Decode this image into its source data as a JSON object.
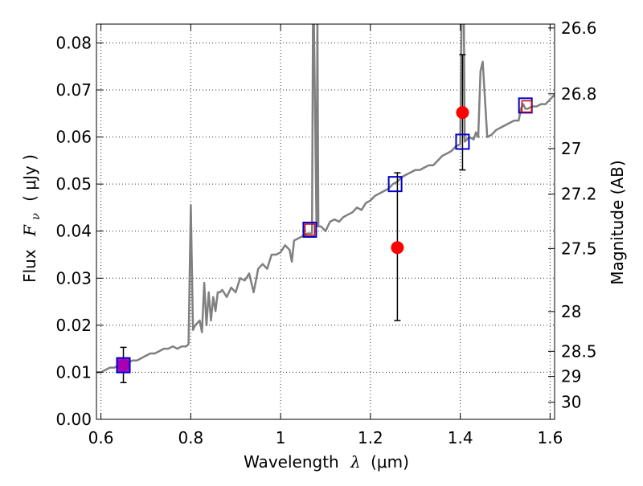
{
  "chart_data": {
    "type": "scatter",
    "xlabel_text": "Wavelength",
    "xlabel_symbol": "λ",
    "xlabel_unit": "(μm)",
    "ylabel_text": "Flux",
    "ylabel_symbol": "F",
    "ylabel_sub": "ν",
    "ylabel_unit": "( μJy )",
    "y2label": "Magnitude (AB)",
    "xlim": [
      0.59,
      1.61
    ],
    "ylim": [
      0.0,
      0.084
    ],
    "grid": true,
    "x_ticks": [
      {
        "v": 0.6,
        "label": "0.6"
      },
      {
        "v": 0.8,
        "label": "0.8"
      },
      {
        "v": 1.0,
        "label": "1"
      },
      {
        "v": 1.2,
        "label": "1.2"
      },
      {
        "v": 1.4,
        "label": "1.4"
      },
      {
        "v": 1.6,
        "label": "1.6"
      }
    ],
    "y_ticks": [
      {
        "v": 0.0,
        "label": "0.00"
      },
      {
        "v": 0.01,
        "label": "0.01"
      },
      {
        "v": 0.02,
        "label": "0.02"
      },
      {
        "v": 0.03,
        "label": "0.03"
      },
      {
        "v": 0.04,
        "label": "0.04"
      },
      {
        "v": 0.05,
        "label": "0.05"
      },
      {
        "v": 0.06,
        "label": "0.06"
      },
      {
        "v": 0.07,
        "label": "0.07"
      },
      {
        "v": 0.08,
        "label": "0.08"
      }
    ],
    "mag_ticks": [
      {
        "mag": 26.6,
        "label": "26.6"
      },
      {
        "mag": 26.8,
        "label": "26.8"
      },
      {
        "mag": 27.0,
        "label": "27"
      },
      {
        "mag": 27.2,
        "label": "27.2"
      },
      {
        "mag": 27.5,
        "label": "27.5"
      },
      {
        "mag": 28.0,
        "label": "28"
      },
      {
        "mag": 28.5,
        "label": "28.5"
      },
      {
        "mag": 29.0,
        "label": "29"
      },
      {
        "mag": 30.0,
        "label": "30"
      }
    ],
    "series": [
      {
        "kind": "line",
        "color": "#808080",
        "x": [
          0.59,
          0.6,
          0.61,
          0.62,
          0.63,
          0.64,
          0.65,
          0.66,
          0.67,
          0.68,
          0.69,
          0.7,
          0.71,
          0.72,
          0.73,
          0.74,
          0.75,
          0.76,
          0.77,
          0.78,
          0.79,
          0.795,
          0.8,
          0.805,
          0.81,
          0.82,
          0.825,
          0.83,
          0.835,
          0.84,
          0.845,
          0.85,
          0.855,
          0.86,
          0.865,
          0.87,
          0.88,
          0.89,
          0.9,
          0.91,
          0.92,
          0.93,
          0.94,
          0.95,
          0.96,
          0.97,
          0.98,
          0.99,
          1.0,
          1.01,
          1.02,
          1.025,
          1.03,
          1.04,
          1.05,
          1.06,
          1.07,
          1.072,
          1.074,
          1.08,
          1.082,
          1.084,
          1.09,
          1.1,
          1.11,
          1.12,
          1.13,
          1.14,
          1.15,
          1.16,
          1.17,
          1.18,
          1.19,
          1.2,
          1.21,
          1.22,
          1.23,
          1.24,
          1.25,
          1.26,
          1.27,
          1.28,
          1.29,
          1.3,
          1.31,
          1.32,
          1.33,
          1.34,
          1.35,
          1.36,
          1.37,
          1.38,
          1.39,
          1.4,
          1.403,
          1.405,
          1.408,
          1.41,
          1.42,
          1.43,
          1.435,
          1.44,
          1.445,
          1.45,
          1.46,
          1.47,
          1.48,
          1.49,
          1.5,
          1.51,
          1.52,
          1.53,
          1.535,
          1.54,
          1.545,
          1.55,
          1.56,
          1.57,
          1.58,
          1.59,
          1.6,
          1.61
        ],
        "y": [
          0.01,
          0.01,
          0.0105,
          0.011,
          0.011,
          0.0115,
          0.0115,
          0.012,
          0.0125,
          0.0125,
          0.013,
          0.0135,
          0.014,
          0.014,
          0.0145,
          0.015,
          0.015,
          0.0155,
          0.015,
          0.0155,
          0.0155,
          0.016,
          0.0455,
          0.019,
          0.02,
          0.021,
          0.0185,
          0.029,
          0.02,
          0.027,
          0.021,
          0.026,
          0.023,
          0.027,
          0.027,
          0.0275,
          0.026,
          0.028,
          0.027,
          0.03,
          0.0295,
          0.031,
          0.027,
          0.032,
          0.033,
          0.032,
          0.035,
          0.035,
          0.0355,
          0.037,
          0.036,
          0.0335,
          0.038,
          0.0385,
          0.039,
          0.0395,
          0.0395,
          0.085,
          0.085,
          0.041,
          0.085,
          0.041,
          0.041,
          0.04,
          0.042,
          0.0425,
          0.042,
          0.043,
          0.0435,
          0.044,
          0.045,
          0.0445,
          0.046,
          0.0465,
          0.0475,
          0.048,
          0.0485,
          0.049,
          0.05,
          0.0505,
          0.0515,
          0.052,
          0.0525,
          0.053,
          0.053,
          0.0535,
          0.054,
          0.054,
          0.055,
          0.056,
          0.0565,
          0.057,
          0.058,
          0.0585,
          0.085,
          0.085,
          0.085,
          0.059,
          0.06,
          0.0595,
          0.061,
          0.06,
          0.074,
          0.076,
          0.06,
          0.0605,
          0.0615,
          0.062,
          0.0625,
          0.063,
          0.0635,
          0.0635,
          0.066,
          0.067,
          0.066,
          0.066,
          0.0665,
          0.0665,
          0.067,
          0.067,
          0.068,
          0.069
        ]
      },
      {
        "kind": "markers",
        "marker": "circle",
        "color": "#ff0000",
        "x": [
          0.65,
          1.26,
          1.405
        ],
        "y": [
          0.0115,
          0.0365,
          0.0652
        ],
        "y_err_low": [
          0.0078,
          0.021,
          0.053
        ],
        "y_err_high": [
          0.0153,
          0.0524,
          0.0775
        ]
      },
      {
        "kind": "markers",
        "marker": "square-open",
        "color": "#0000cc",
        "x": [
          0.65,
          1.065,
          1.255,
          1.405,
          1.545
        ],
        "y": [
          0.0115,
          0.0403,
          0.05,
          0.059,
          0.0667
        ]
      },
      {
        "kind": "markers",
        "marker": "square-open-small",
        "color": "#cc0000",
        "x": [
          1.065,
          1.548
        ],
        "y": [
          0.0403,
          0.0665
        ]
      }
    ]
  }
}
